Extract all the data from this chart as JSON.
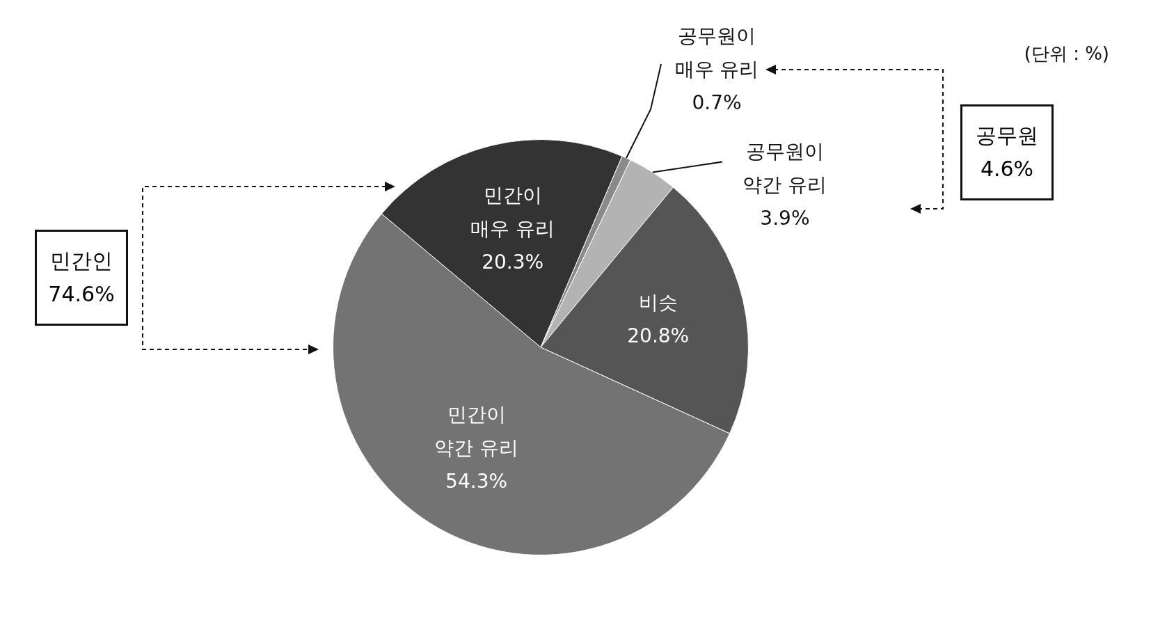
{
  "chart_data": {
    "type": "pie",
    "categories": [
      "민간이 매우 유리",
      "공무원이 매우 유리",
      "공무원이 약간 유리",
      "비슷",
      "민간이 약간 유리"
    ],
    "values": [
      20.3,
      0.7,
      3.9,
      20.8,
      54.3
    ],
    "colors": [
      "#333333",
      "#8a8a8a",
      "#b3b3b3",
      "#555555",
      "#737373"
    ],
    "value_labels": [
      "20.3%",
      "0.7%",
      "3.9%",
      "20.8%",
      "54.3%"
    ],
    "legend": false,
    "annotations": [
      "(단위 : %)",
      "민간인 74.6%",
      "공무원 4.6%"
    ]
  }
}
